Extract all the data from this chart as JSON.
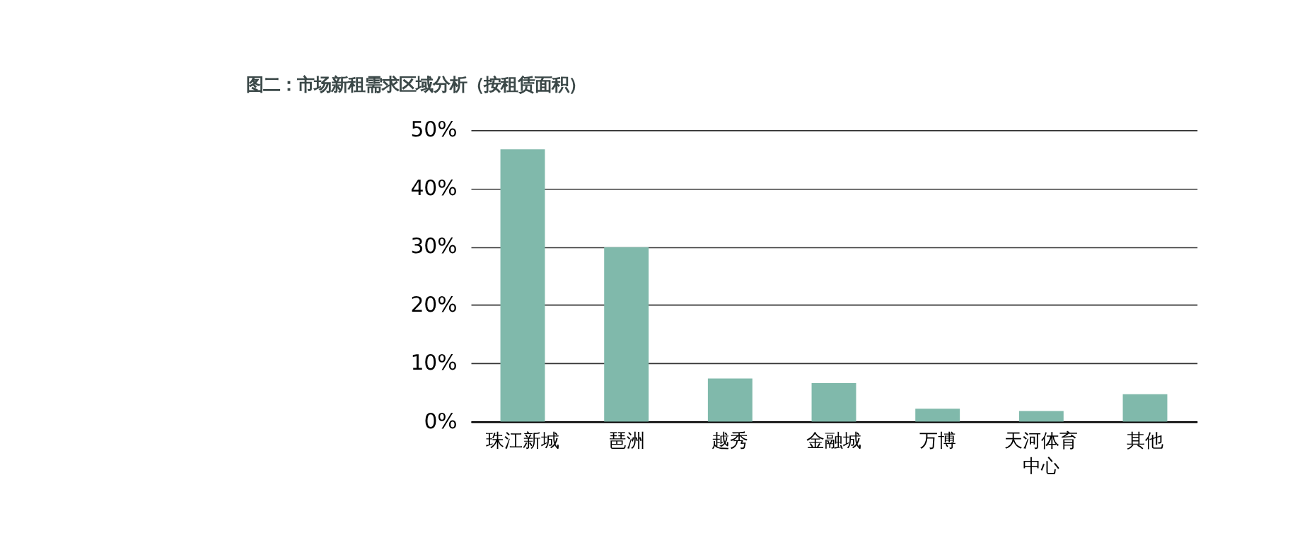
{
  "chart_data": {
    "type": "bar",
    "title": "图二：市场新租需求区域分析（按租赁面积）",
    "categories": [
      "珠江新城",
      "琶洲",
      "越秀",
      "金融城",
      "万博",
      "天河体育中心",
      "其他"
    ],
    "values": [
      46.7,
      29.9,
      7.4,
      6.6,
      2.2,
      1.8,
      4.7
    ],
    "color": "#80b9ab",
    "ylim": [
      0,
      50
    ],
    "yticks": [
      {
        "value": 0,
        "label": "0%"
      },
      {
        "value": 10,
        "label": "10%"
      },
      {
        "value": 20,
        "label": "20%"
      },
      {
        "value": 30,
        "label": "30%"
      },
      {
        "value": 40,
        "label": "40%"
      },
      {
        "value": 50,
        "label": "50%"
      }
    ],
    "grid": "y"
  }
}
